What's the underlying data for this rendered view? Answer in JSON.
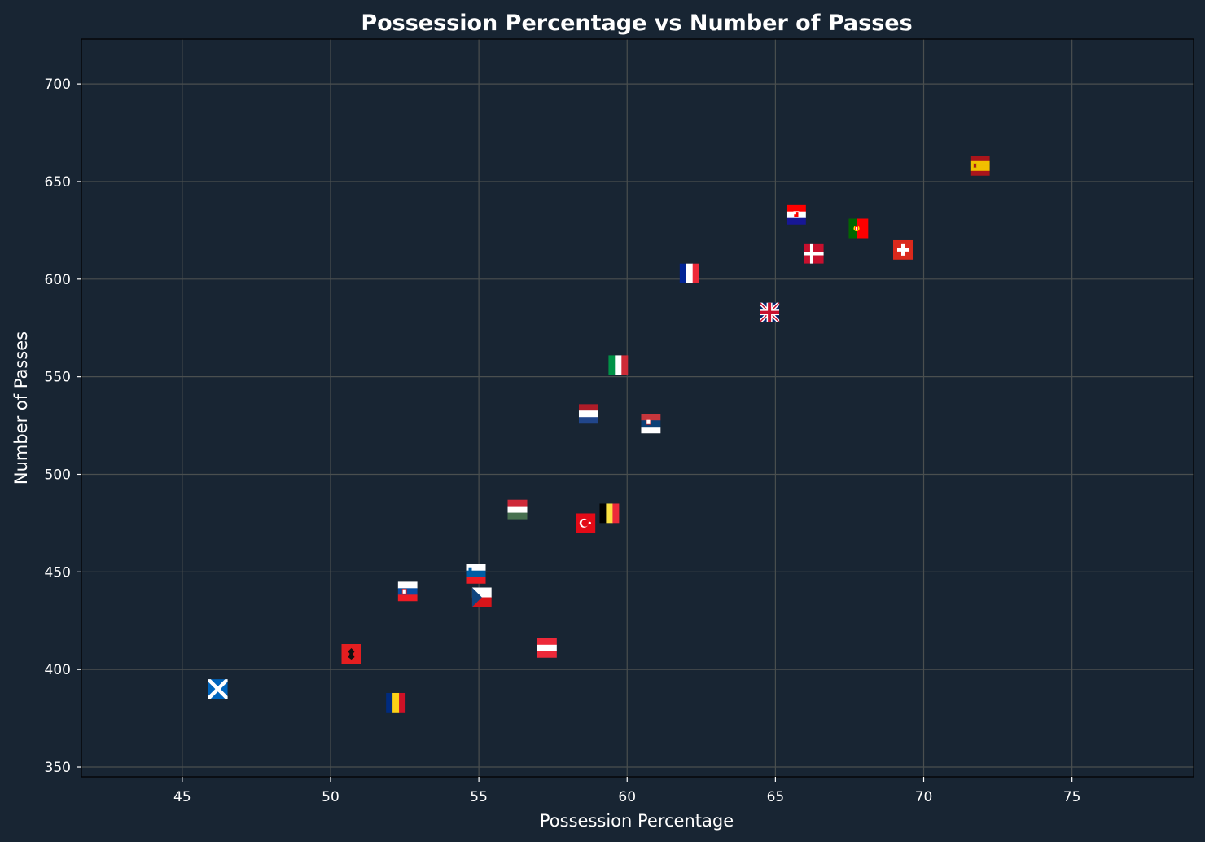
{
  "colors": {
    "background": "#182533",
    "axes_frame": "#000000",
    "grid": "#4a4f4f",
    "text": "#ffffff"
  },
  "chart_data": {
    "type": "scatter",
    "title": "Possession Percentage vs Number of Passes",
    "xlabel": "Possession Percentage",
    "ylabel": "Number of Passes",
    "xlim": [
      41.6,
      79.1
    ],
    "ylim": [
      345,
      723
    ],
    "xticks": [
      45,
      50,
      55,
      60,
      65,
      70,
      75
    ],
    "yticks": [
      350,
      400,
      450,
      500,
      550,
      600,
      650,
      700
    ],
    "grid": true,
    "marker": "country-flag-icon",
    "points": [
      {
        "x": 46.2,
        "y": 390,
        "icon": "scotland-flag-icon"
      },
      {
        "x": 50.7,
        "y": 408,
        "icon": "albania-flag-icon"
      },
      {
        "x": 52.2,
        "y": 383,
        "icon": "romania-flag-icon"
      },
      {
        "x": 52.6,
        "y": 440,
        "icon": "slovakia-flag-icon"
      },
      {
        "x": 54.9,
        "y": 449,
        "icon": "slovenia-flag-icon"
      },
      {
        "x": 55.1,
        "y": 437,
        "icon": "czechia-flag-icon"
      },
      {
        "x": 56.3,
        "y": 482,
        "icon": "hungary-flag-icon"
      },
      {
        "x": 57.3,
        "y": 411,
        "icon": "austria-flag-icon"
      },
      {
        "x": 58.6,
        "y": 475,
        "icon": "turkey-flag-icon"
      },
      {
        "x": 58.7,
        "y": 531,
        "icon": "netherlands-flag-icon"
      },
      {
        "x": 59.4,
        "y": 480,
        "icon": "belgium-flag-icon"
      },
      {
        "x": 59.7,
        "y": 556,
        "icon": "italy-flag-icon"
      },
      {
        "x": 60.8,
        "y": 526,
        "icon": "serbia-flag-icon"
      },
      {
        "x": 62.1,
        "y": 603,
        "icon": "france-flag-icon"
      },
      {
        "x": 64.8,
        "y": 583,
        "icon": "united-kingdom-flag-icon"
      },
      {
        "x": 65.7,
        "y": 633,
        "icon": "croatia-flag-icon"
      },
      {
        "x": 66.3,
        "y": 613,
        "icon": "denmark-flag-icon"
      },
      {
        "x": 67.8,
        "y": 626,
        "icon": "portugal-flag-icon"
      },
      {
        "x": 69.3,
        "y": 615,
        "icon": "switzerland-flag-icon"
      },
      {
        "x": 71.9,
        "y": 658,
        "icon": "spain-flag-icon"
      }
    ]
  }
}
